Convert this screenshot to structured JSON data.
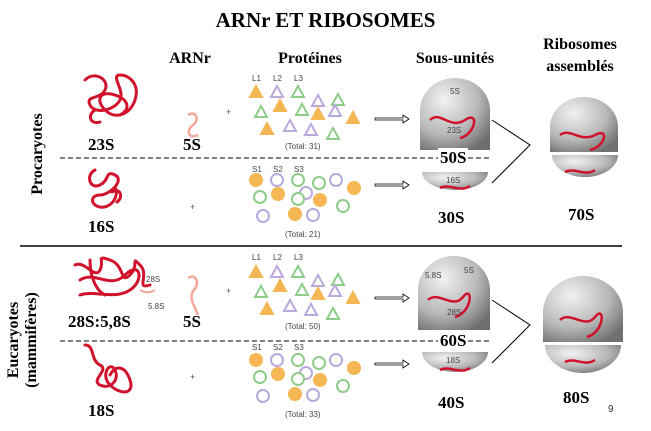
{
  "title": "ARNr ET RIBOSOMES",
  "headers": {
    "arnr": "ARNr",
    "proteines": "Protéines",
    "sous_unites": "Sous-unités",
    "ribosomes_line1": "Ribosomes",
    "ribosomes_line2": "assemblés"
  },
  "procaryotes": {
    "label": "Procaryotes",
    "large_rna": "23S",
    "small_5s": "5S",
    "small_rna": "16S",
    "large_proteins": {
      "types": [
        "L1",
        "L2",
        "L3"
      ],
      "total": "(Total:  31)"
    },
    "small_proteins": {
      "types": [
        "S1",
        "S2",
        "S3"
      ],
      "total": "(Total:  21)"
    },
    "large_subunit": "50S",
    "small_subunit": "30S",
    "subunit_inner_labels": {
      "top": "5S",
      "mid": "23S",
      "small": "16S"
    },
    "ribosome": "70S"
  },
  "eucaryotes": {
    "label_line1": "Eucaryotes",
    "label_line2": "(mammifères)",
    "large_rna": "28S:5,8S",
    "large_rna_callout_28s": "28S",
    "large_rna_callout_58s": "5.8S",
    "small_5s": "5S",
    "small_rna": "18S",
    "large_proteins": {
      "types": [
        "L1",
        "L2",
        "L3"
      ],
      "total": "(Total:  50)"
    },
    "small_proteins": {
      "types": [
        "S1",
        "S2",
        "S3"
      ],
      "total": "(Total:  33)"
    },
    "large_subunit": "60S",
    "small_subunit": "40S",
    "subunit_inner_labels": {
      "left": "5.8S",
      "top": "5S",
      "mid": "28S",
      "small": "18S"
    },
    "ribosome": "80S"
  },
  "page_number": "9",
  "colors": {
    "rna": "#d0122c",
    "rna_5s": "#f4a79b",
    "orange": "#f5b654",
    "green": "#8fcc8a",
    "purple": "#b9a9dc",
    "subunit": "#a9a9a9"
  }
}
